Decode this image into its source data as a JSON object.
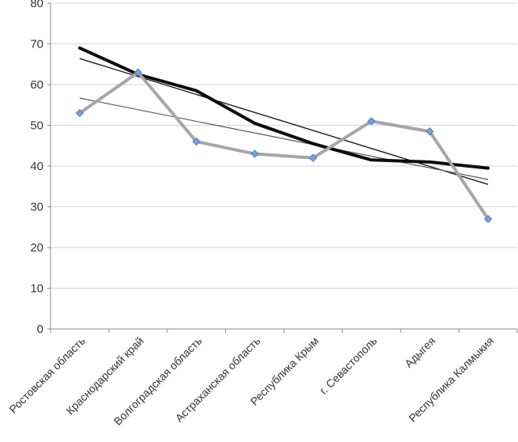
{
  "chart_data": {
    "type": "line",
    "title": "",
    "xlabel": "",
    "ylabel": "",
    "legend": "none",
    "grid": true,
    "ylim": [
      0,
      80
    ],
    "yticks": [
      0,
      10,
      20,
      30,
      40,
      50,
      60,
      70,
      80
    ],
    "categories": [
      "Ростовская область",
      "Краснодарский край",
      "Волгоградская область",
      "Астраханская область",
      "Республика Крым",
      "г. Севастополь",
      "Адыгея",
      "Республика Калмыкия"
    ],
    "series": [
      {
        "name": "black-line-series",
        "values": [
          69,
          62.5,
          58.5,
          50.5,
          45.5,
          41.5,
          41,
          39.5
        ],
        "color": "#0d0d0d",
        "width": 4,
        "markers": false
      },
      {
        "name": "gray-marker-series",
        "values": [
          53,
          63,
          46,
          43,
          42,
          51,
          48.5,
          27
        ],
        "color": "#a6a6a6",
        "width": 4,
        "markers": true,
        "marker_shape": "diamond",
        "marker_fill": "#74a0dc",
        "marker_stroke": "#4f81bd"
      }
    ],
    "trendlines": [
      {
        "for": "black-line-series",
        "start_value": 66.4,
        "end_value": 35.5,
        "color": "#1a1a1a",
        "width": 1.4
      },
      {
        "for": "gray-marker-series",
        "start_value": 56.7,
        "end_value": 36.7,
        "color": "#52526a",
        "width": 1.2
      }
    ],
    "colors": {
      "gridline": "#d6d6d6",
      "axis": "#8c8c8c",
      "tick": "#8c8c8c",
      "label": "#333333"
    }
  }
}
